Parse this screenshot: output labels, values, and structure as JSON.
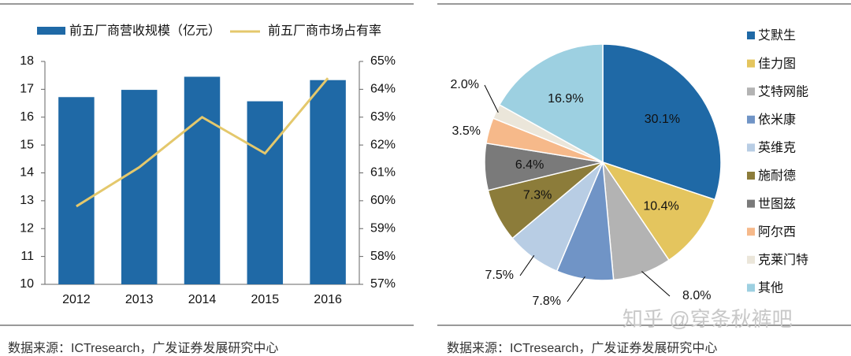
{
  "chart_data": [
    {
      "type": "bar-line",
      "categories": [
        "2012",
        "2013",
        "2014",
        "2015",
        "2016"
      ],
      "series": [
        {
          "name": "前五厂商营收规模（亿元）",
          "color": "#1f69a6",
          "values": [
            16.72,
            16.98,
            17.45,
            16.57,
            17.33
          ]
        },
        {
          "name": "前五厂商市场占有率",
          "color": "#e4c86c",
          "axis": "y2",
          "values": [
            59.8,
            61.2,
            63.0,
            61.7,
            64.4
          ]
        }
      ],
      "ylim": [
        10,
        18
      ],
      "yticks": [
        10,
        11,
        12,
        13,
        14,
        15,
        16,
        17,
        18
      ],
      "y2lim": [
        57,
        65
      ],
      "y2ticks": [
        {
          "value": 57,
          "label": "57%"
        },
        {
          "value": 58,
          "label": "58%"
        },
        {
          "value": 59,
          "label": "59%"
        },
        {
          "value": 60,
          "label": "60%"
        },
        {
          "value": 61,
          "label": "61%"
        },
        {
          "value": 62,
          "label": "62%"
        },
        {
          "value": 63,
          "label": "63%"
        },
        {
          "value": 64,
          "label": "64%"
        },
        {
          "value": 65,
          "label": "65%"
        }
      ]
    },
    {
      "type": "pie",
      "categories": [
        "艾默生",
        "佳力图",
        "艾特网能",
        "依米康",
        "英维克",
        "施耐德",
        "世图兹",
        "阿尔西",
        "克莱门特",
        "其他"
      ],
      "values": [
        30.1,
        10.4,
        8.0,
        7.8,
        7.5,
        7.3,
        6.4,
        3.5,
        2.0,
        16.9
      ],
      "value_labels": [
        "30.1%",
        "10.4%",
        "8.0%",
        "7.8%",
        "7.5%",
        "7.3%",
        "6.4%",
        "3.5%",
        "2.0%",
        "16.9%"
      ],
      "colors": [
        "#1f69a6",
        "#e4c55e",
        "#b3b3b3",
        "#7094c6",
        "#b8cde4",
        "#8c7c3a",
        "#7a7a7a",
        "#f6b98a",
        "#ebe6da",
        "#9dd0e1"
      ]
    }
  ],
  "sources": [
    "数据来源：ICTresearch，广发证券发展研究中心",
    "数据来源：ICTresearch，广发证券发展研究中心"
  ],
  "watermark": "知乎 @穿条秋裤吧"
}
